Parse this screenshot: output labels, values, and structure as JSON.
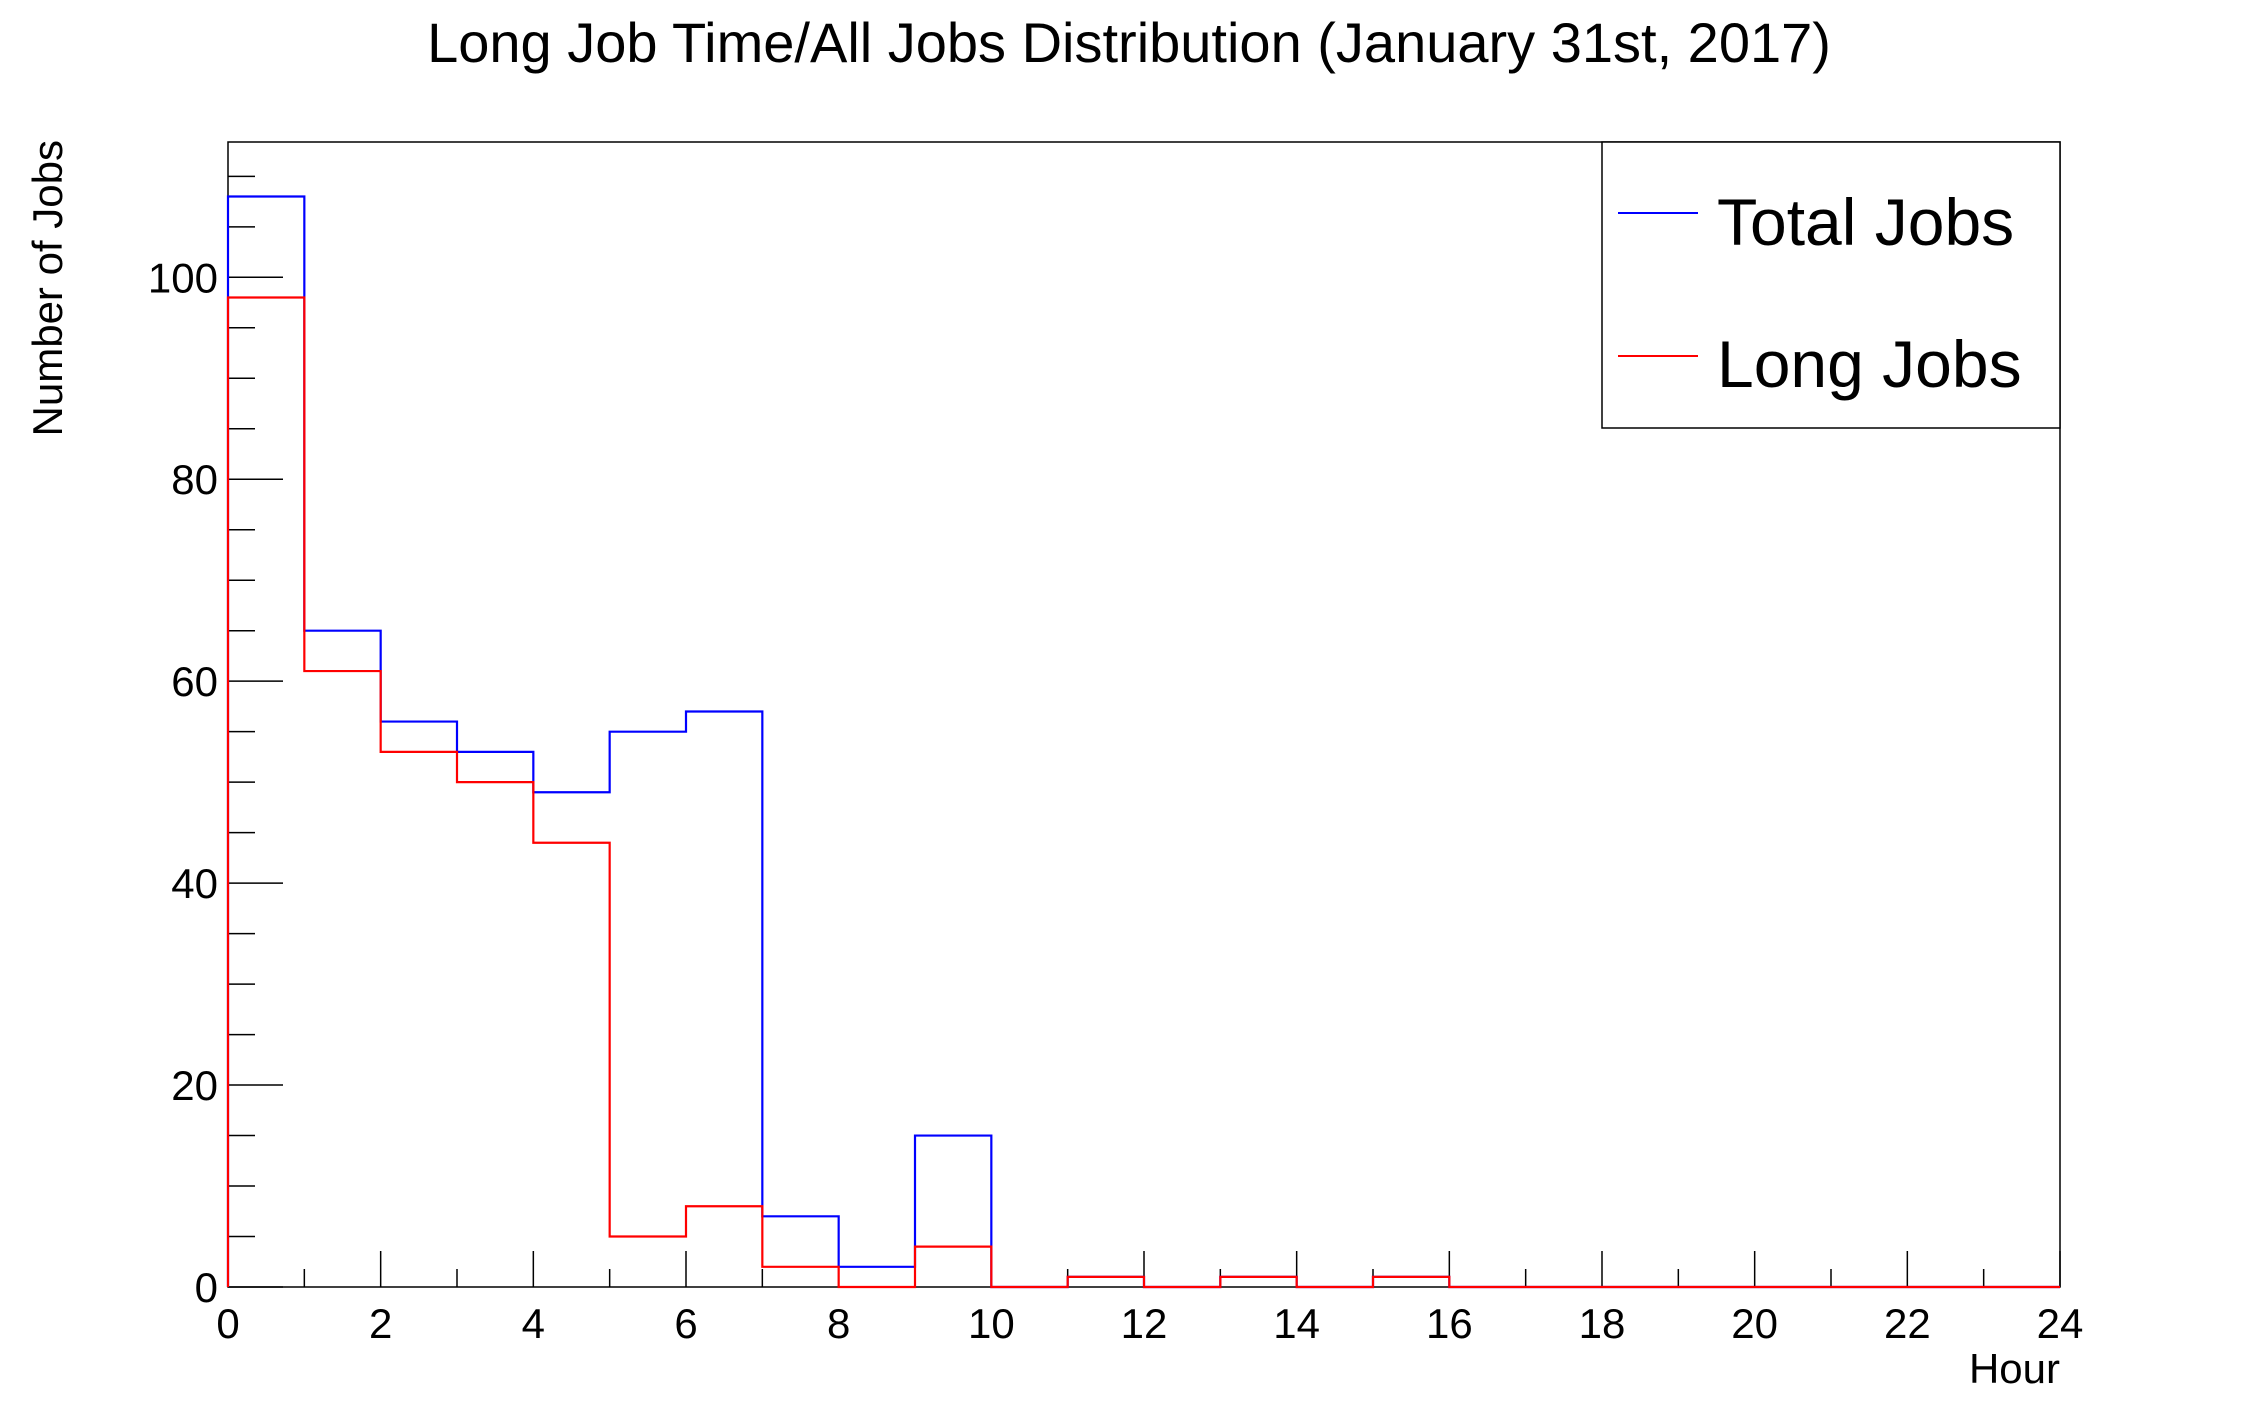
{
  "chart_data": {
    "type": "histogram",
    "title": "Long Job Time/All Jobs Distribution (January 31st, 2017)",
    "xlabel": "Hour",
    "ylabel": "Number of Jobs",
    "xlim": [
      0,
      24
    ],
    "ylim": [
      0,
      113.4
    ],
    "bin_width": 1,
    "x_ticks": [
      0,
      2,
      4,
      6,
      8,
      10,
      12,
      14,
      16,
      18,
      20,
      22,
      24
    ],
    "y_ticks": [
      0,
      20,
      40,
      60,
      80,
      100
    ],
    "grid": false,
    "legend_position": "top-right",
    "bins": [
      0,
      1,
      2,
      3,
      4,
      5,
      6,
      7,
      8,
      9,
      10,
      11,
      12,
      13,
      14,
      15,
      16,
      17,
      18,
      19,
      20,
      21,
      22,
      23
    ],
    "series": [
      {
        "name": "Total Jobs",
        "color": "#0000ff",
        "values": [
          108,
          65,
          56,
          53,
          49,
          55,
          57,
          7,
          2,
          15,
          0,
          1,
          0,
          1,
          0,
          1,
          0,
          0,
          0,
          0,
          0,
          0,
          0,
          0
        ]
      },
      {
        "name": "Long Jobs",
        "color": "#ff0000",
        "values": [
          98,
          61,
          53,
          50,
          44,
          5,
          8,
          2,
          0,
          4,
          0,
          1,
          0,
          1,
          0,
          1,
          0,
          0,
          0,
          0,
          0,
          0,
          0,
          0
        ]
      }
    ]
  }
}
